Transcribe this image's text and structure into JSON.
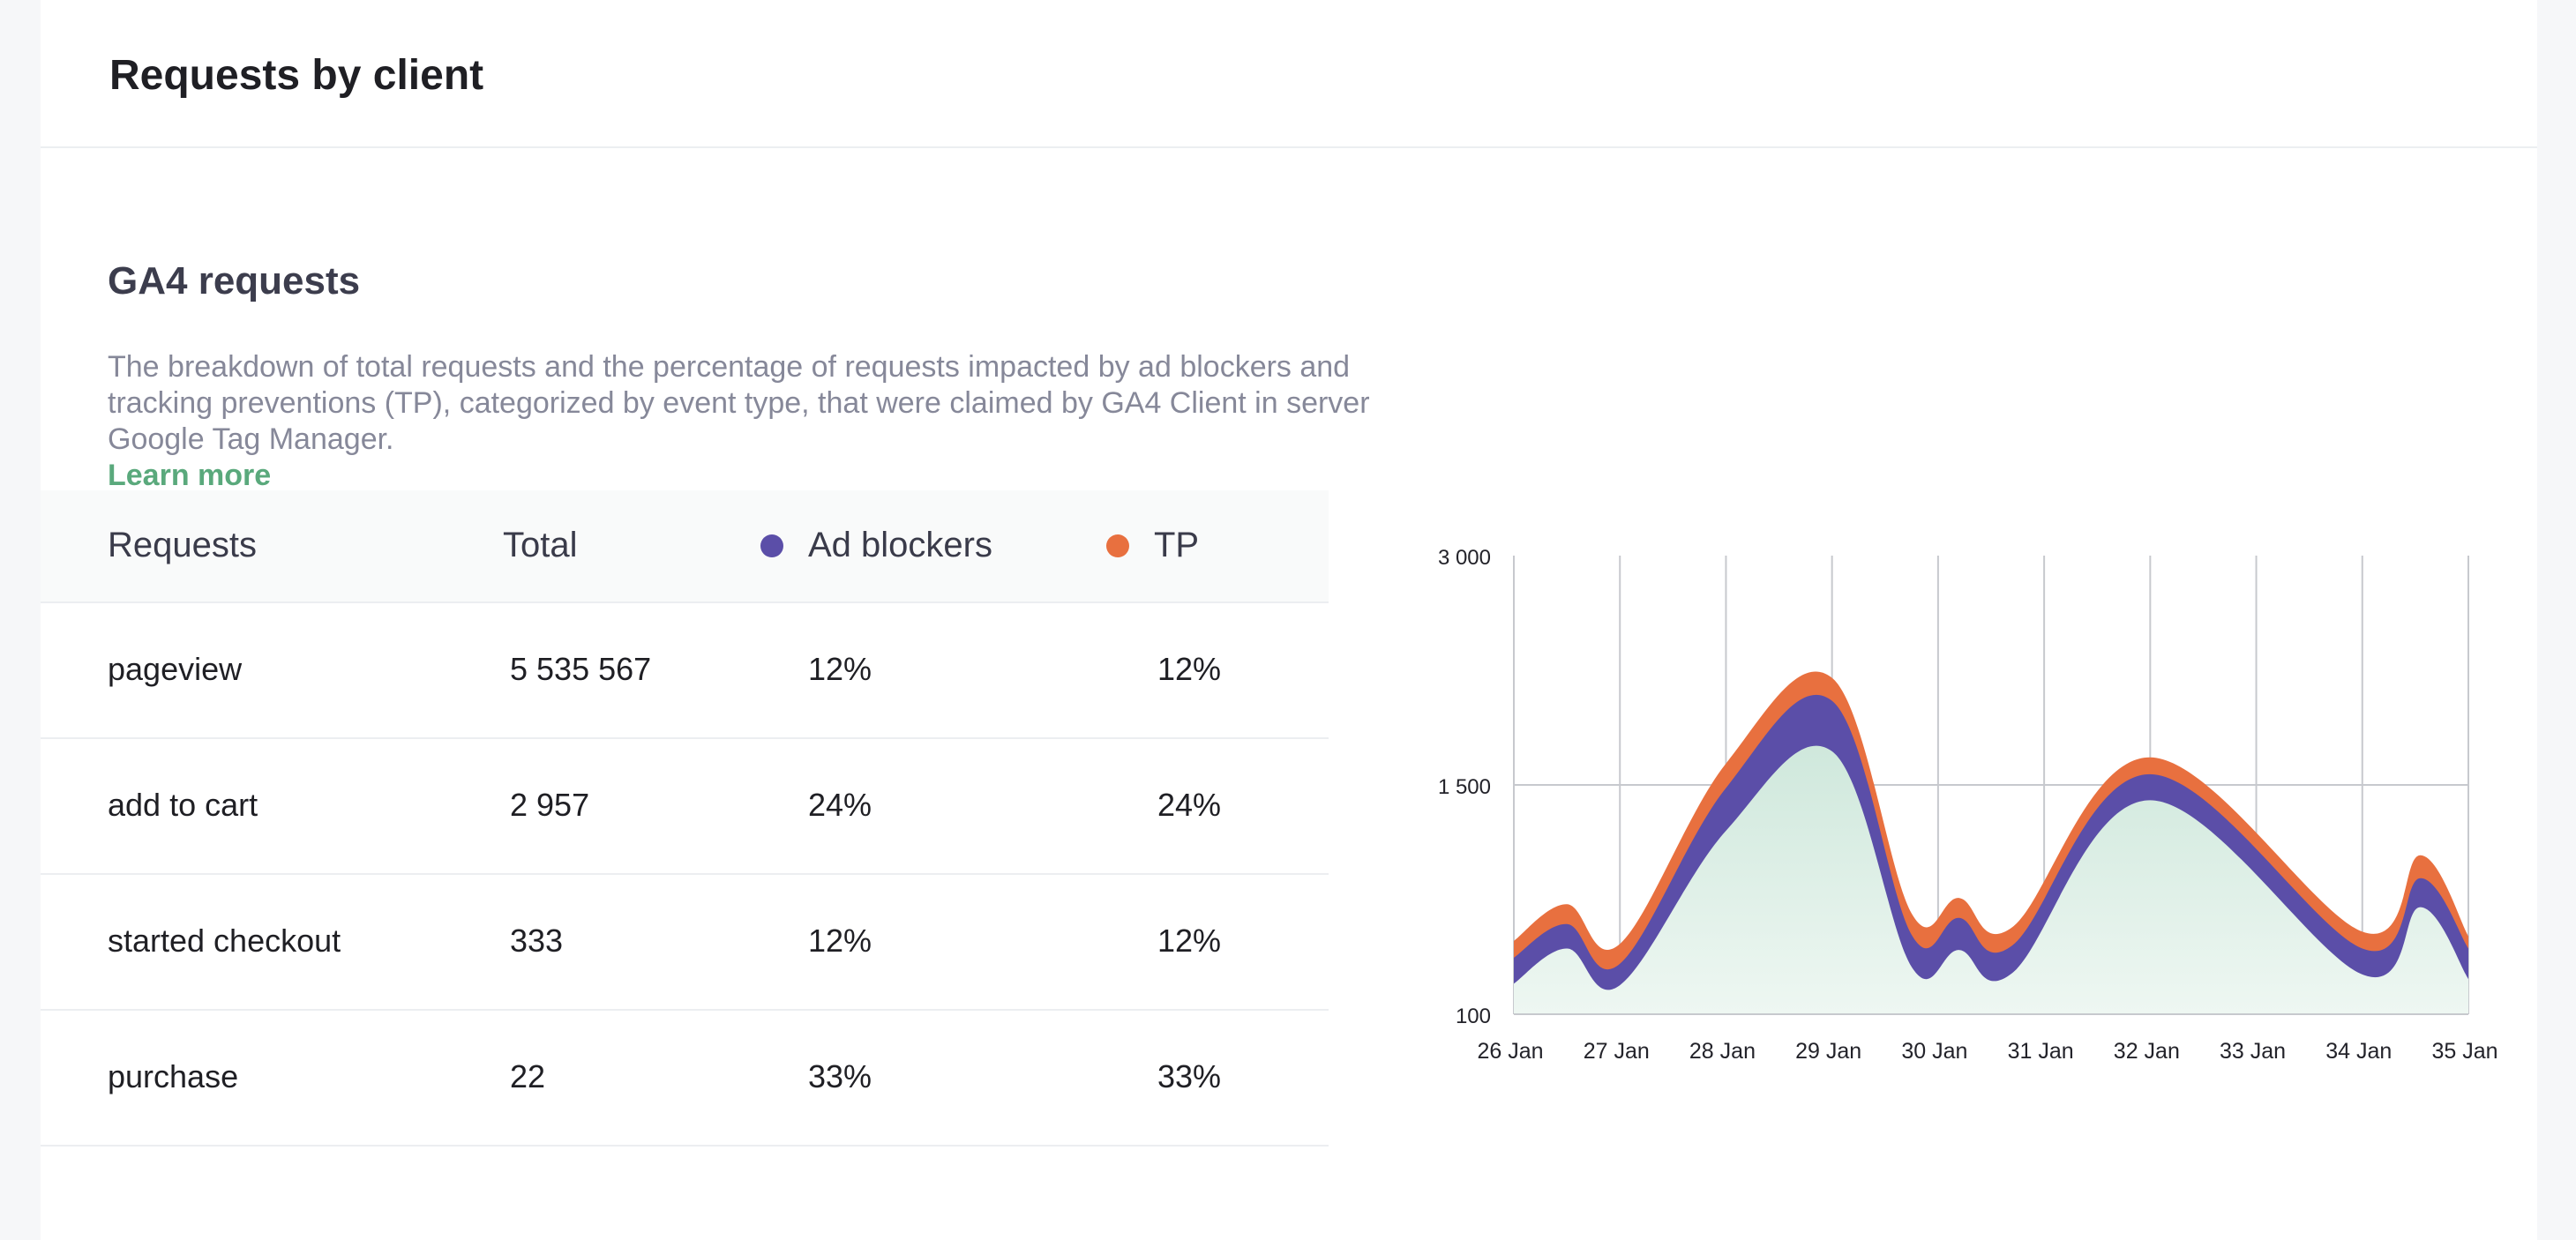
{
  "card": {
    "title": "Requests by client"
  },
  "section": {
    "title": "GA4 requests",
    "description": "The breakdown of total requests and the percentage of requests impacted by ad blockers and tracking preventions (TP), categorized by event type, that were claimed by GA4 Client in server Google Tag Manager.",
    "learn_more": "Learn more"
  },
  "table": {
    "headers": {
      "requests": "Requests",
      "total": "Total",
      "ad_blockers": "Ad blockers",
      "tp": "TP"
    },
    "rows": [
      {
        "name": "pageview",
        "total": "5 535 567",
        "ad_blockers": "12%",
        "tp": "12%"
      },
      {
        "name": "add to cart",
        "total": "2 957",
        "ad_blockers": "24%",
        "tp": "24%"
      },
      {
        "name": "started checkout",
        "total": "333",
        "ad_blockers": "12%",
        "tp": "12%"
      },
      {
        "name": "purchase",
        "total": "22",
        "ad_blockers": "33%",
        "tp": "33%"
      }
    ]
  },
  "colors": {
    "ad_blockers": "#5b4ea8",
    "tp": "#e8703f",
    "base": "#dcefe7",
    "accent_link": "#5aa97c"
  },
  "chart_data": {
    "type": "area",
    "stacked": true,
    "x": [
      "26 Jan",
      "27 Jan",
      "28 Jan",
      "29 Jan",
      "30 Jan",
      "31 Jan",
      "32 Jan",
      "33 Jan",
      "34 Jan",
      "35 Jan"
    ],
    "y_ticks": [
      "3 000",
      "1 500",
      "100"
    ],
    "y_tick_values": [
      3000,
      1500,
      100
    ],
    "ylim": [
      0,
      3000
    ],
    "grid": true,
    "series": [
      {
        "name": "Total",
        "color": "#dcefe7",
        "points": [
          [
            0,
            200
          ],
          [
            0.5,
            430
          ],
          [
            1,
            190
          ],
          [
            2,
            1200
          ],
          [
            3,
            1720
          ],
          [
            3.75,
            310
          ],
          [
            4.2,
            420
          ],
          [
            4.7,
            270
          ],
          [
            6,
            1400
          ],
          [
            8,
            260
          ],
          [
            8.55,
            700
          ],
          [
            9,
            230
          ]
        ]
      },
      {
        "name": "Ad blockers",
        "color": "#5b4ea8",
        "points": [
          [
            0,
            370
          ],
          [
            0.5,
            590
          ],
          [
            1,
            330
          ],
          [
            2,
            1480
          ],
          [
            3,
            2050
          ],
          [
            3.75,
            520
          ],
          [
            4.2,
            630
          ],
          [
            4.7,
            450
          ],
          [
            6,
            1570
          ],
          [
            8,
            430
          ],
          [
            8.55,
            890
          ],
          [
            9,
            430
          ]
        ]
      },
      {
        "name": "TP",
        "color": "#e8703f",
        "points": [
          [
            0,
            480
          ],
          [
            0.5,
            720
          ],
          [
            1,
            460
          ],
          [
            2,
            1640
          ],
          [
            3,
            2200
          ],
          [
            3.75,
            660
          ],
          [
            4.2,
            760
          ],
          [
            4.7,
            570
          ],
          [
            6,
            1680
          ],
          [
            8,
            540
          ],
          [
            8.55,
            1040
          ],
          [
            9,
            510
          ]
        ]
      }
    ]
  }
}
